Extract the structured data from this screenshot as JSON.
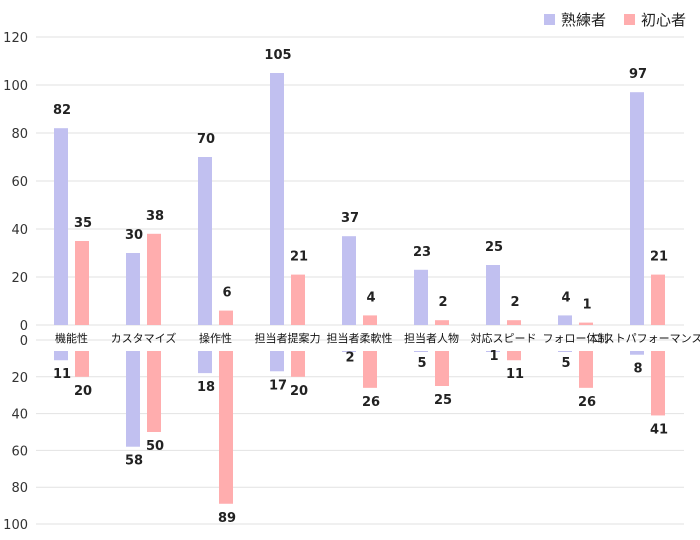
{
  "chart_data": {
    "type": "bar",
    "categories": [
      "機能性",
      "カスタマイズ",
      "操作性",
      "担当者提案力",
      "担当者柔軟性",
      "担当者人物",
      "対応スピード",
      "フォロー体制",
      "コストパフォーマンス"
    ],
    "upper_panel": {
      "ylim": [
        0,
        120
      ],
      "yticks": [
        0,
        20,
        40,
        60,
        80,
        100,
        120
      ],
      "series": [
        {
          "name": "熟練者",
          "color": "#c1c0f0",
          "values": [
            82,
            30,
            70,
            105,
            37,
            23,
            25,
            4,
            97
          ]
        },
        {
          "name": "初心者",
          "color": "#ffadae",
          "values": [
            35,
            38,
            6,
            21,
            4,
            2,
            2,
            1,
            21
          ]
        }
      ]
    },
    "lower_panel": {
      "ylim": [
        0,
        100
      ],
      "yticks": [
        0,
        20,
        40,
        60,
        80,
        100
      ],
      "direction": "downward",
      "series": [
        {
          "name": "熟練者",
          "color": "#c1c0f0",
          "values": [
            11,
            58,
            18,
            17,
            2,
            5,
            1,
            5,
            8
          ]
        },
        {
          "name": "初心者",
          "color": "#ffadae",
          "values": [
            20,
            50,
            89,
            20,
            26,
            25,
            11,
            26,
            41
          ]
        }
      ]
    },
    "legend": {
      "position": "top-right",
      "items": [
        "熟練者",
        "初心者"
      ]
    },
    "grid": true,
    "title": "",
    "xlabel": "",
    "ylabel": ""
  }
}
